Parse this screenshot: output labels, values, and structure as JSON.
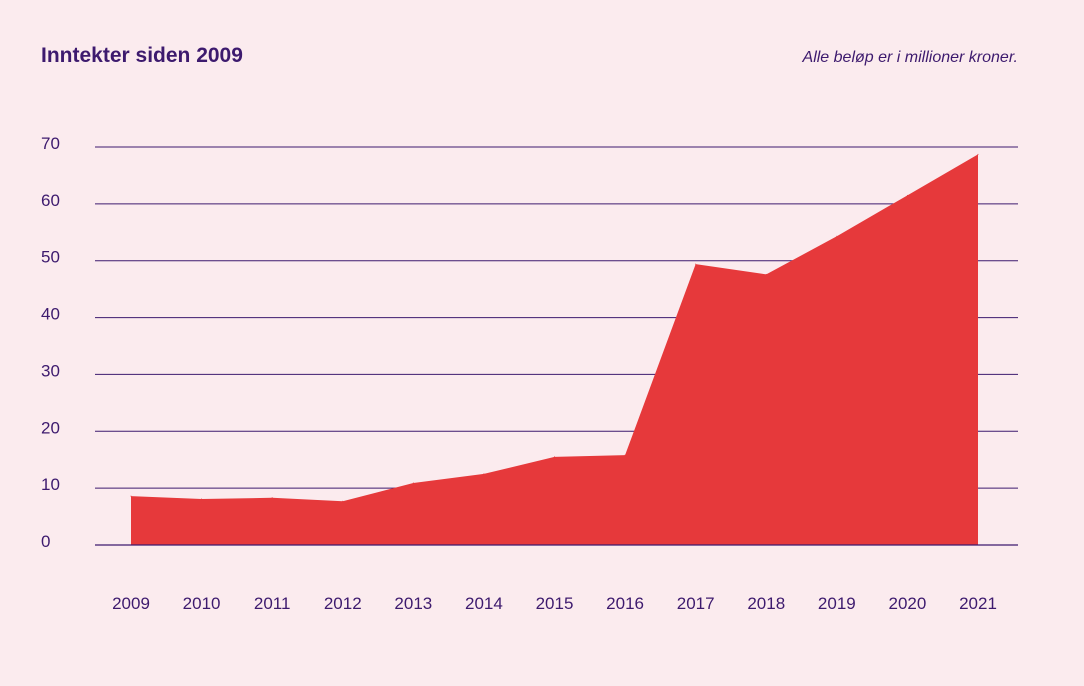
{
  "header": {
    "title": "Inntekter siden 2009",
    "note": "Alle beløp er i millioner kroner."
  },
  "chart_data": {
    "type": "area",
    "title": "Inntekter siden 2009",
    "subtitle": "Alle beløp er i millioner kroner.",
    "xlabel": "",
    "ylabel": "",
    "categories": [
      "2009",
      "2010",
      "2011",
      "2012",
      "2013",
      "2014",
      "2015",
      "2016",
      "2017",
      "2018",
      "2019",
      "2020",
      "2021"
    ],
    "values": [
      8.6,
      8.1,
      8.3,
      7.7,
      10.9,
      12.5,
      15.5,
      15.8,
      49.4,
      47.6,
      54.3,
      61.5,
      68.7
    ],
    "ylim": [
      0,
      70
    ],
    "yticks": [
      0,
      10,
      20,
      30,
      40,
      50,
      60,
      70
    ],
    "grid": true,
    "legend": "none",
    "colors": {
      "fill": "#e6393b",
      "grid": "#3d1a6e",
      "text": "#3d1a6e",
      "background": "#fbebee"
    }
  }
}
